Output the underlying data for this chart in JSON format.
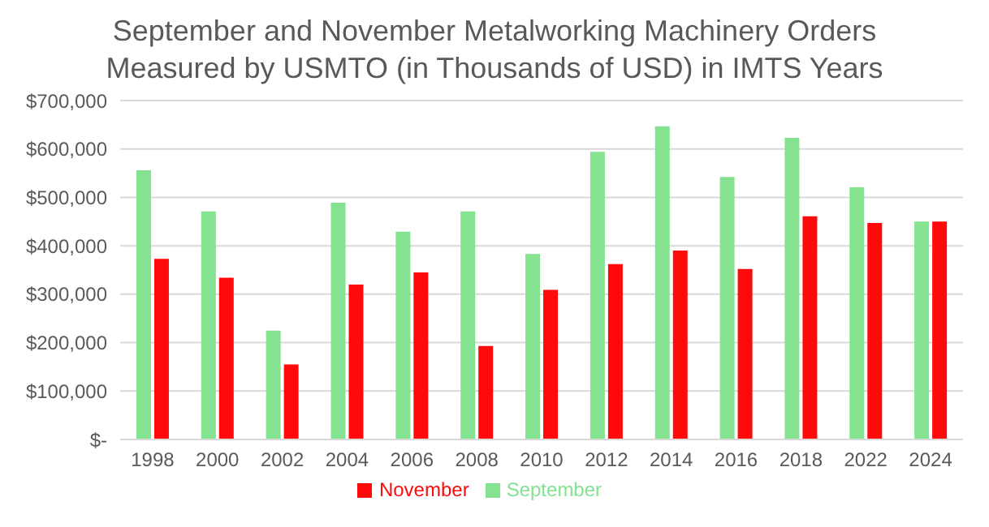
{
  "chart_data": {
    "type": "bar",
    "title": "September and November Metalworking Machinery Orders Measured by USMTO (in Thousands of USD) in IMTS Years",
    "categories": [
      "1998",
      "2000",
      "2002",
      "2004",
      "2006",
      "2008",
      "2010",
      "2012",
      "2014",
      "2016",
      "2018",
      "2022",
      "2024"
    ],
    "series": [
      {
        "name": "September",
        "color": "#84e291",
        "values": [
          556000,
          471000,
          225000,
          489000,
          429000,
          471000,
          383000,
          594000,
          647000,
          542000,
          623000,
          521000,
          450000
        ]
      },
      {
        "name": "November",
        "color": "#ff0a0a",
        "values": [
          373000,
          334000,
          155000,
          320000,
          345000,
          193000,
          309000,
          362000,
          390000,
          352000,
          461000,
          447000,
          450000
        ]
      }
    ],
    "ylim": [
      0,
      700000
    ],
    "yticks": [
      {
        "value": 0,
        "label": "$-"
      },
      {
        "value": 100000,
        "label": "$100,000"
      },
      {
        "value": 200000,
        "label": "$200,000"
      },
      {
        "value": 300000,
        "label": "$300,000"
      },
      {
        "value": 400000,
        "label": "$400,000"
      },
      {
        "value": 500000,
        "label": "$500,000"
      },
      {
        "value": 600000,
        "label": "$600,000"
      },
      {
        "value": 700000,
        "label": "$700,000"
      }
    ],
    "grid": "y",
    "legend": "bottom"
  }
}
